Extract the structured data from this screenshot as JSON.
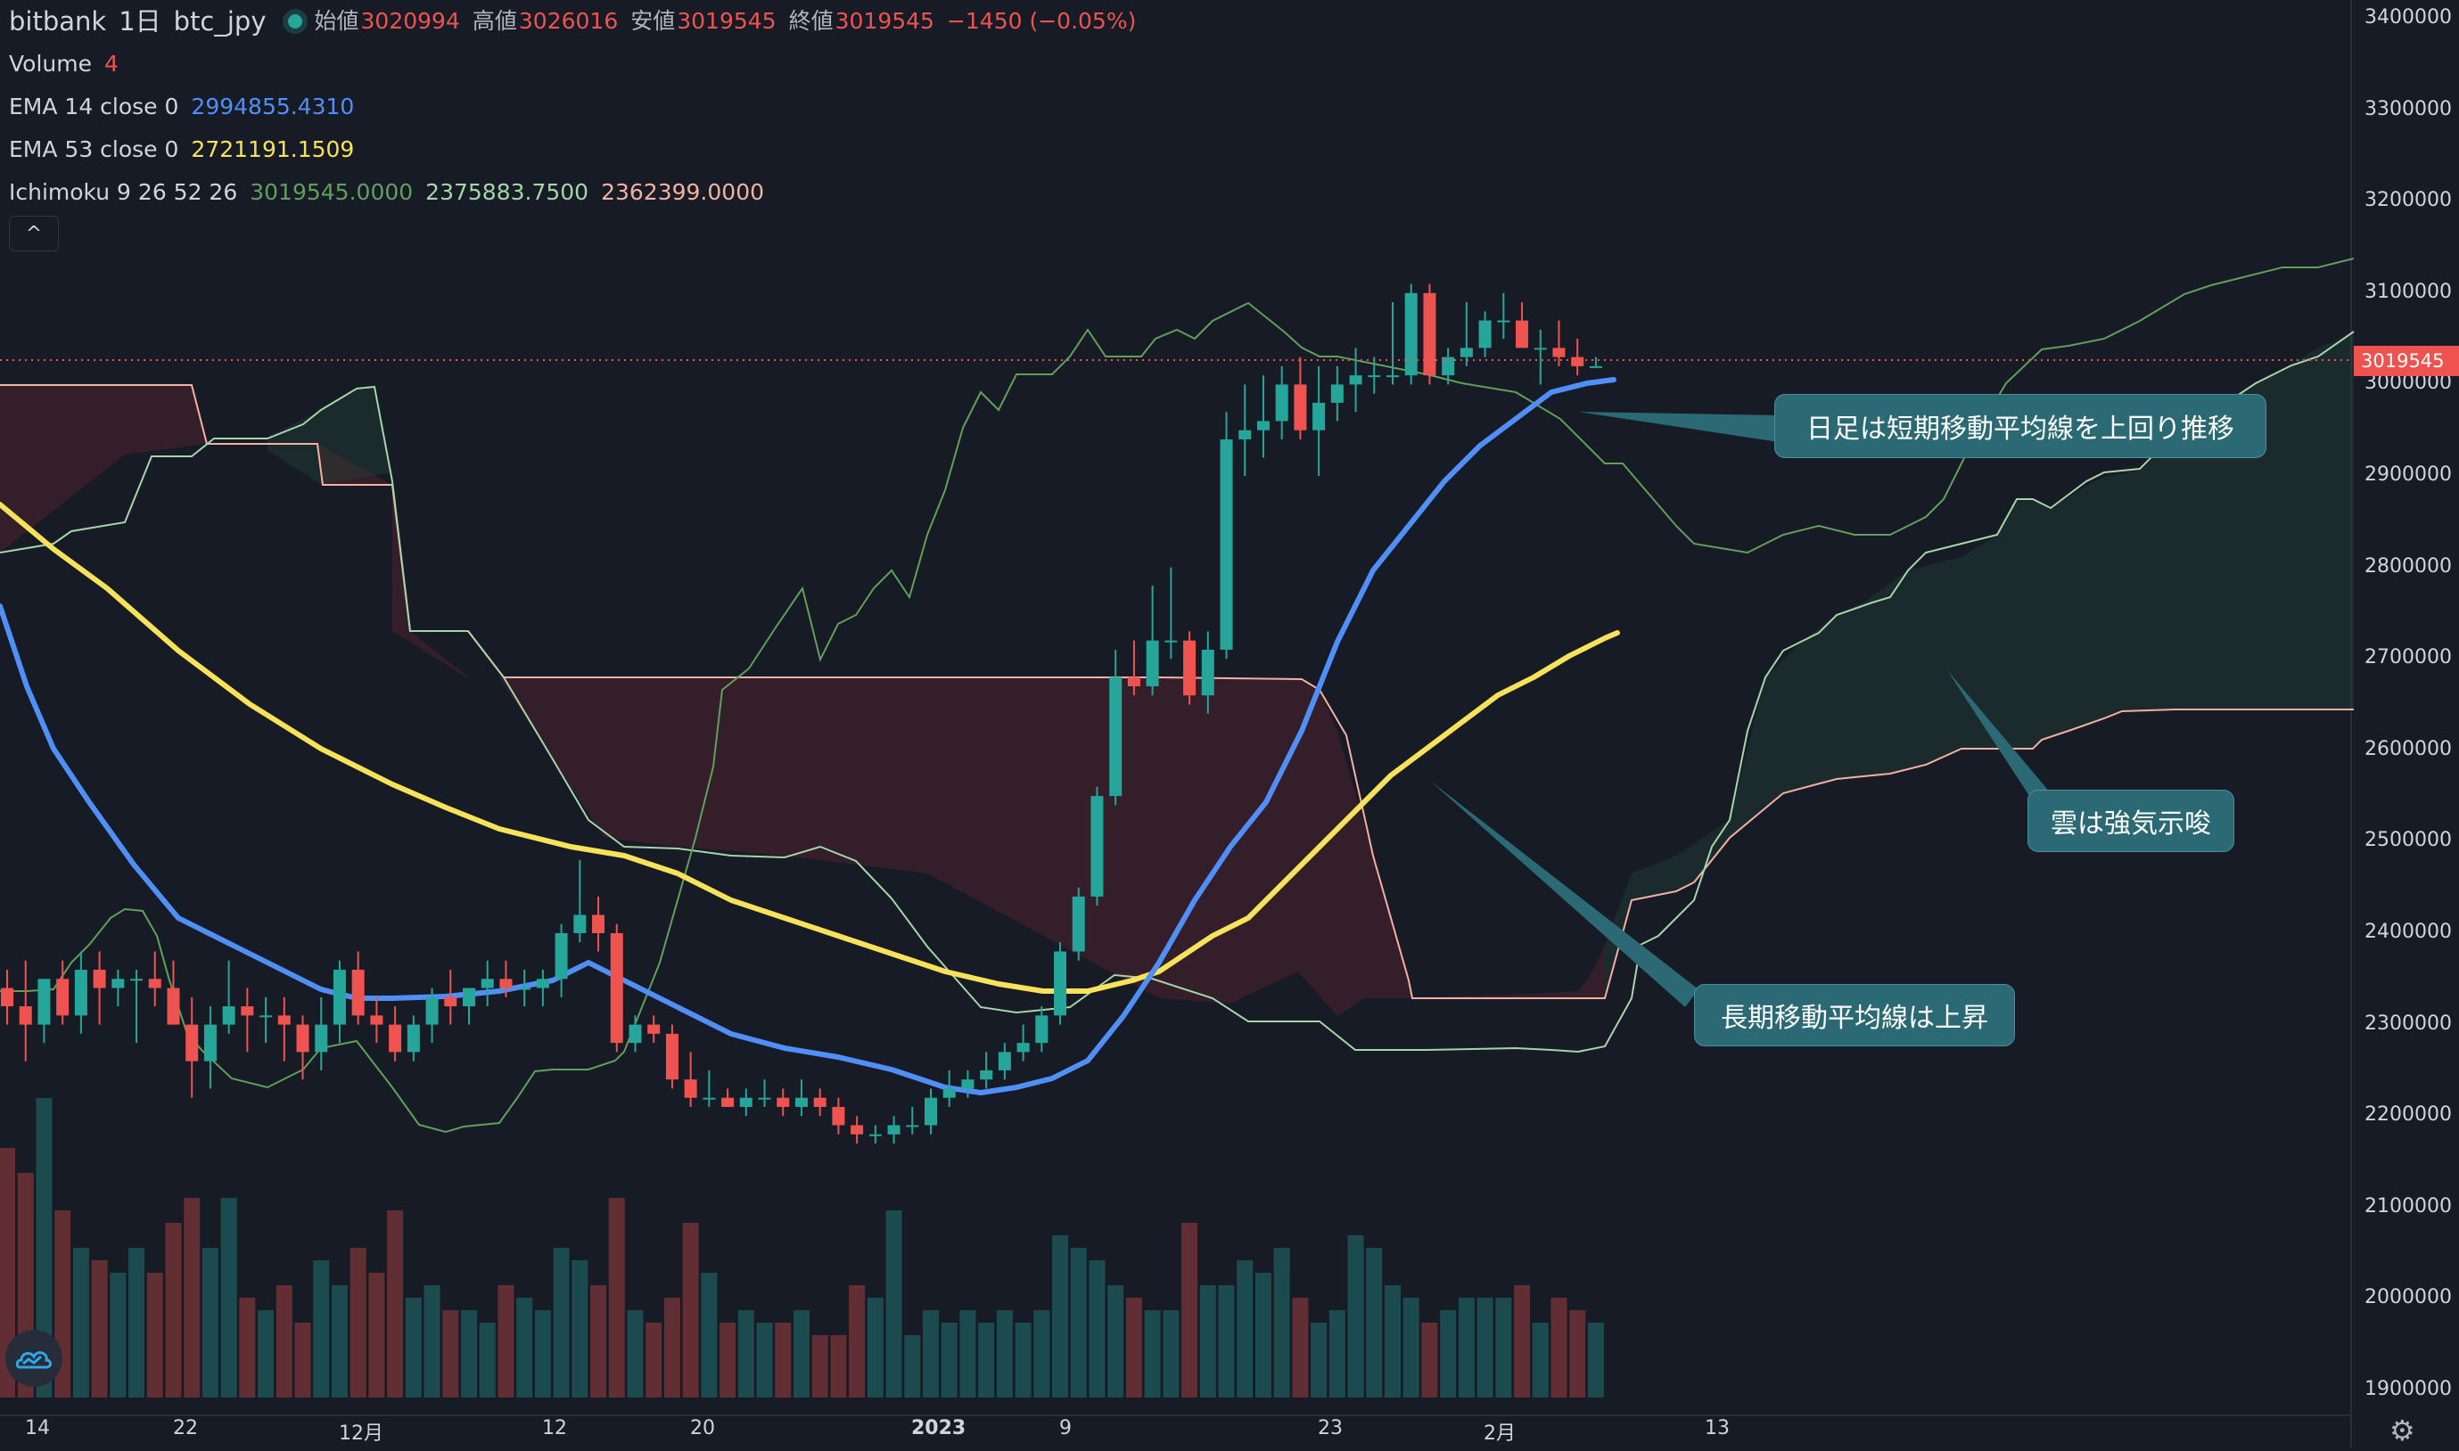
{
  "header": {
    "exchange": "bitbank",
    "interval": "1日",
    "symbol": "btc_jpy",
    "open_label": "始値",
    "open_value": "3020994",
    "high_label": "高値",
    "high_value": "3026016",
    "low_label": "安値",
    "low_value": "3019545",
    "close_label": "終値",
    "close_value": "3019545",
    "change": "−1450 (−0.05%)"
  },
  "indicators": [
    {
      "label": "Volume",
      "values": [
        "4"
      ],
      "colors": [
        "#ef5350"
      ]
    },
    {
      "label": "EMA 14 close 0",
      "values": [
        "2994855.4310"
      ],
      "colors": [
        "#4f8ff7"
      ]
    },
    {
      "label": "EMA 53 close 0",
      "values": [
        "2721191.1509"
      ],
      "colors": [
        "#f7e25a"
      ]
    },
    {
      "label": "Ichimoku 9 26 52 26",
      "values": [
        "3019545.0000",
        "2375883.7500",
        "2362399.0000"
      ],
      "colors": [
        "#5fa05a",
        "#a5d6a7",
        "#f4b0a0"
      ]
    }
  ],
  "collapse_icon": "^",
  "price_axis": [
    "3400000",
    "3300000",
    "3200000",
    "3100000",
    "3000000",
    "2900000",
    "2800000",
    "2700000",
    "2600000",
    "2500000",
    "2400000",
    "2300000",
    "2200000",
    "2100000",
    "2000000",
    "1900000"
  ],
  "current_price_label": "3019545",
  "time_axis": [
    {
      "label": "14",
      "bold": false
    },
    {
      "label": "22",
      "bold": false
    },
    {
      "label": "12月",
      "bold": false
    },
    {
      "label": "12",
      "bold": false
    },
    {
      "label": "20",
      "bold": false
    },
    {
      "label": "2023",
      "bold": true
    },
    {
      "label": "9",
      "bold": false
    },
    {
      "label": "23",
      "bold": false
    },
    {
      "label": "2月",
      "bold": false
    },
    {
      "label": "13",
      "bold": false
    }
  ],
  "annotations": {
    "daily_above_short_ma": "日足は短期移動平均線を上回り推移",
    "cloud_bullish": "雲は強気示唆",
    "long_ma_rising": "長期移動平均線は上昇"
  },
  "colors": {
    "background": "#161b26",
    "up": "#26a69a",
    "down": "#ef5350",
    "ema14": "#4f8ff7",
    "ema53": "#f7e25a",
    "callout": "#2b6a75"
  },
  "chart_data": {
    "type": "candlestick",
    "interval": "1日",
    "ylim": [
      1880000,
      3420000
    ],
    "indicators": [
      "Volume",
      "EMA 14",
      "EMA 53",
      "Ichimoku 9 26 52 26"
    ]
  }
}
